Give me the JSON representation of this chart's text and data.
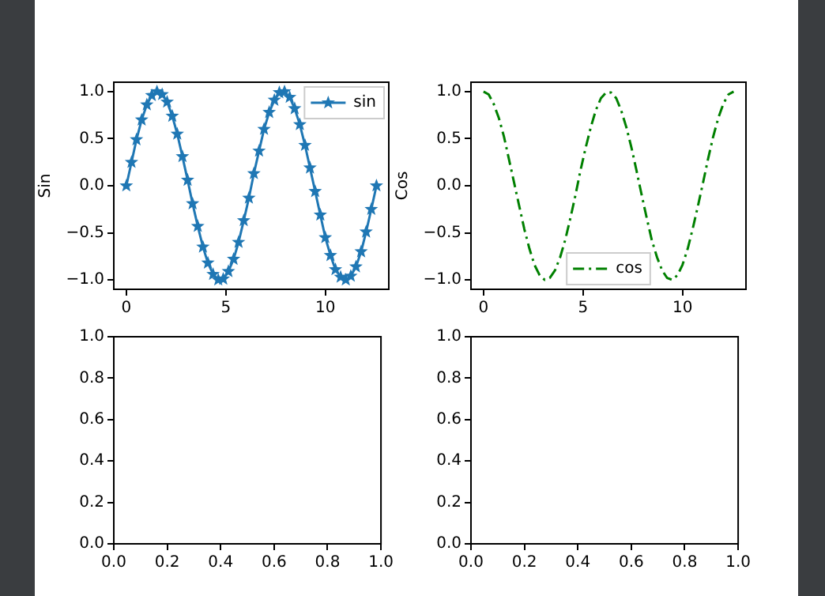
{
  "chart_data": [
    {
      "type": "line",
      "ylabel": "Sin",
      "xlim": [
        -0.63,
        13.19
      ],
      "ylim": [
        -1.1,
        1.1
      ],
      "xticks": [
        0,
        5,
        10
      ],
      "yticks": [
        {
          "value": -1,
          "label": "−1.0"
        },
        {
          "value": -0.5,
          "label": "−0.5"
        },
        {
          "value": 0,
          "label": "0.0"
        },
        {
          "value": 0.5,
          "label": "0.5"
        },
        {
          "value": 1,
          "label": "1.0"
        }
      ],
      "legend": "top right",
      "x": [
        0,
        0.26,
        0.51,
        0.77,
        1.03,
        1.28,
        1.54,
        1.8,
        2.05,
        2.31,
        2.56,
        2.82,
        3.08,
        3.33,
        3.59,
        3.85,
        4.1,
        4.36,
        4.62,
        4.87,
        5.13,
        5.39,
        5.64,
        5.9,
        6.16,
        6.41,
        6.67,
        6.92,
        7.18,
        7.44,
        7.69,
        7.95,
        8.21,
        8.46,
        8.72,
        8.98,
        9.23,
        9.49,
        9.75,
        10,
        10.26,
        10.51,
        10.77,
        11.03,
        11.28,
        11.54,
        11.8,
        12.05,
        12.31,
        12.57
      ],
      "series": [
        {
          "name": "sin",
          "color": "#1f77b4",
          "marker": "star",
          "line_style": "solid",
          "values": [
            0,
            0.25,
            0.49,
            0.7,
            0.86,
            0.96,
            1,
            0.97,
            0.89,
            0.74,
            0.55,
            0.31,
            0.06,
            -0.19,
            -0.43,
            -0.65,
            -0.82,
            -0.94,
            -1,
            -0.99,
            -0.91,
            -0.78,
            -0.6,
            -0.37,
            -0.13,
            0.13,
            0.37,
            0.6,
            0.78,
            0.91,
            0.99,
            1,
            0.94,
            0.82,
            0.65,
            0.43,
            0.19,
            -0.06,
            -0.31,
            -0.55,
            -0.74,
            -0.89,
            -0.97,
            -1,
            -0.96,
            -0.86,
            -0.7,
            -0.49,
            -0.25,
            0
          ]
        }
      ]
    },
    {
      "type": "line",
      "ylabel": "Cos",
      "xlim": [
        -0.63,
        13.19
      ],
      "ylim": [
        -1.1,
        1.1
      ],
      "xticks": [
        0,
        5,
        10
      ],
      "yticks": [
        {
          "value": -1,
          "label": "−1.0"
        },
        {
          "value": -0.5,
          "label": "−0.5"
        },
        {
          "value": 0,
          "label": "0.0"
        },
        {
          "value": 0.5,
          "label": "0.5"
        },
        {
          "value": 1,
          "label": "1.0"
        }
      ],
      "legend": "bottom",
      "x": [
        0,
        0.26,
        0.51,
        0.77,
        1.03,
        1.28,
        1.54,
        1.8,
        2.05,
        2.31,
        2.56,
        2.82,
        3.08,
        3.33,
        3.59,
        3.85,
        4.1,
        4.36,
        4.62,
        4.87,
        5.13,
        5.39,
        5.64,
        5.9,
        6.16,
        6.41,
        6.67,
        6.92,
        7.18,
        7.44,
        7.69,
        7.95,
        8.21,
        8.46,
        8.72,
        8.98,
        9.23,
        9.49,
        9.75,
        10,
        10.26,
        10.51,
        10.77,
        11.03,
        11.28,
        11.54,
        11.8,
        12.05,
        12.31,
        12.57
      ],
      "series": [
        {
          "name": "cos",
          "color": "#008000",
          "marker": "none",
          "line_style": "dashed",
          "values": [
            1,
            0.97,
            0.87,
            0.72,
            0.52,
            0.28,
            0.03,
            -0.22,
            -0.46,
            -0.67,
            -0.84,
            -0.95,
            -1,
            -0.98,
            -0.9,
            -0.76,
            -0.58,
            -0.35,
            -0.1,
            0.16,
            0.4,
            0.62,
            0.8,
            0.93,
            0.99,
            0.99,
            0.93,
            0.8,
            0.62,
            0.4,
            0.16,
            -0.1,
            -0.35,
            -0.58,
            -0.76,
            -0.9,
            -0.98,
            -1,
            -0.95,
            -0.84,
            -0.67,
            -0.46,
            -0.22,
            0.03,
            0.28,
            0.52,
            0.72,
            0.87,
            0.97,
            1
          ]
        }
      ]
    },
    {
      "type": "line",
      "xlim": [
        0,
        1
      ],
      "ylim": [
        0,
        1
      ],
      "xticks": [
        {
          "value": 0,
          "label": "0.0"
        },
        {
          "value": 0.2,
          "label": "0.2"
        },
        {
          "value": 0.4,
          "label": "0.4"
        },
        {
          "value": 0.6,
          "label": "0.6"
        },
        {
          "value": 0.8,
          "label": "0.8"
        },
        {
          "value": 1,
          "label": "1.0"
        }
      ],
      "yticks": [
        {
          "value": 0,
          "label": "0.0"
        },
        {
          "value": 0.2,
          "label": "0.2"
        },
        {
          "value": 0.4,
          "label": "0.4"
        },
        {
          "value": 0.6,
          "label": "0.6"
        },
        {
          "value": 0.8,
          "label": "0.8"
        },
        {
          "value": 1,
          "label": "1.0"
        }
      ]
    },
    {
      "type": "line",
      "xlim": [
        0,
        1
      ],
      "ylim": [
        0,
        1
      ],
      "xticks": [
        {
          "value": 0,
          "label": "0.0"
        },
        {
          "value": 0.2,
          "label": "0.2"
        },
        {
          "value": 0.4,
          "label": "0.4"
        },
        {
          "value": 0.6,
          "label": "0.6"
        },
        {
          "value": 0.8,
          "label": "0.8"
        },
        {
          "value": 1,
          "label": "1.0"
        }
      ],
      "yticks": [
        {
          "value": 0,
          "label": "0.0"
        },
        {
          "value": 0.2,
          "label": "0.2"
        },
        {
          "value": 0.4,
          "label": "0.4"
        },
        {
          "value": 0.6,
          "label": "0.6"
        },
        {
          "value": 0.8,
          "label": "0.8"
        },
        {
          "value": 1,
          "label": "1.0"
        }
      ]
    }
  ]
}
